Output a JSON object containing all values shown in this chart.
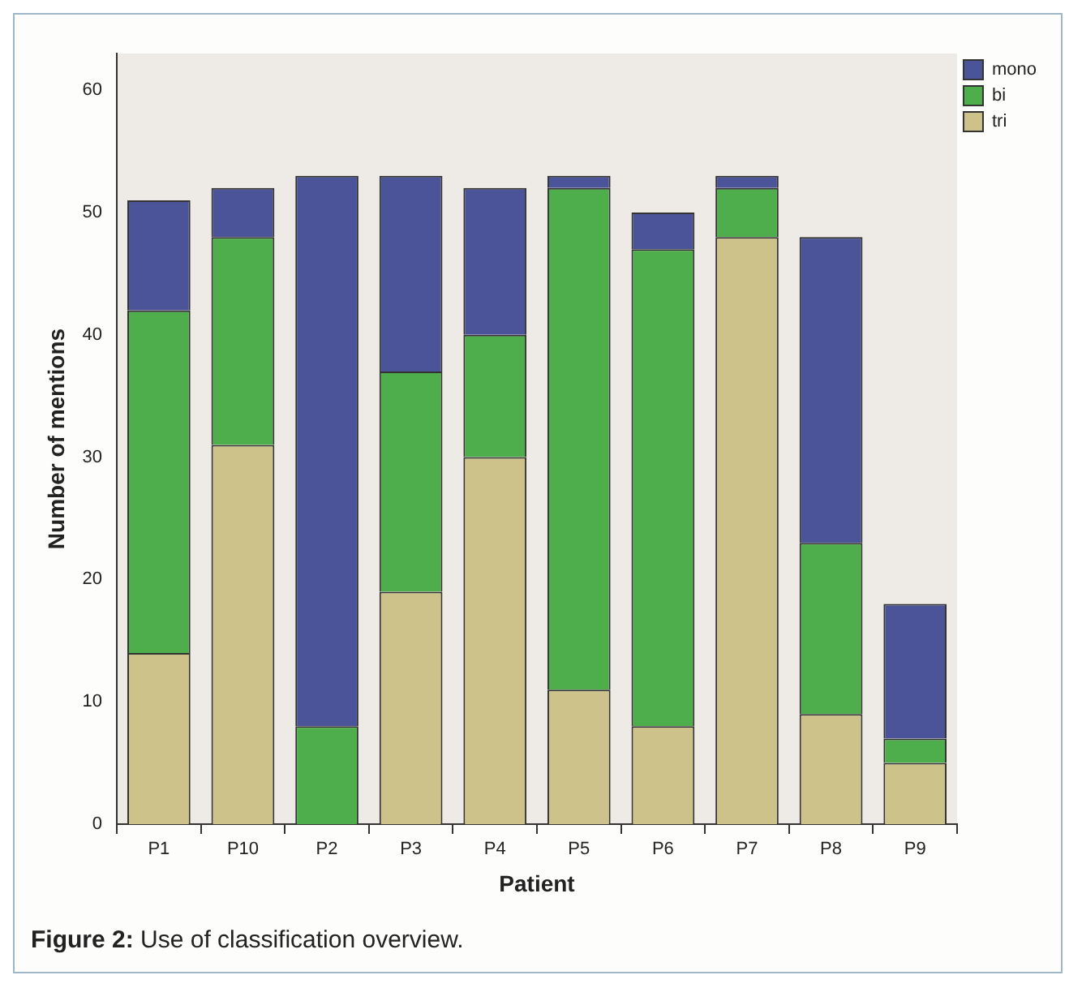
{
  "chart_data": {
    "type": "bar",
    "stacked": true,
    "xlabel": "Patient",
    "ylabel": "Number of mentions",
    "categories": [
      "P1",
      "P10",
      "P2",
      "P3",
      "P4",
      "P5",
      "P6",
      "P7",
      "P8",
      "P9"
    ],
    "series": [
      {
        "name": "tri",
        "color": "#cdc38a",
        "values": [
          14,
          31,
          0,
          19,
          30,
          11,
          8,
          48,
          9,
          5
        ]
      },
      {
        "name": "bi",
        "color": "#4fae4c",
        "values": [
          28,
          17,
          8,
          18,
          10,
          41,
          39,
          4,
          14,
          2
        ]
      },
      {
        "name": "mono",
        "color": "#4c5499",
        "values": [
          9,
          4,
          45,
          16,
          12,
          1,
          3,
          1,
          25,
          11
        ]
      }
    ],
    "ylim": [
      0,
      63
    ],
    "yticks": [
      0,
      10,
      20,
      30,
      40,
      50,
      60
    ],
    "grid": false,
    "legend": "top right",
    "annotations": [
      "Figure 2: Use of classification overview."
    ]
  }
}
